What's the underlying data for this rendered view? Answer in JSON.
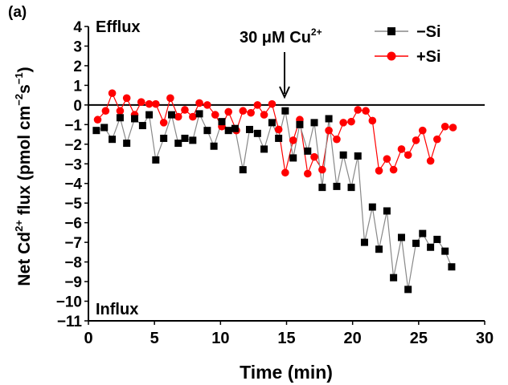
{
  "panel_label": "(a)",
  "annotations": {
    "efflux": "Efflux",
    "influx": "Influx",
    "treatment": "30 μM Cu",
    "treatment_sup": "2+",
    "treatment_time": 14.8
  },
  "chart_data": {
    "type": "line",
    "xlabel": "Time (min)",
    "ylabel_parts": {
      "prefix": "Net Cd",
      "sup1": "2+",
      "mid1": " flux (pmol cm",
      "sup2": "−2",
      "mid2": "s",
      "sup3": "−1",
      "suffix": ")"
    },
    "xlim": [
      0,
      30
    ],
    "ylim": [
      -11,
      4
    ],
    "xticks": [
      0,
      5,
      10,
      15,
      20,
      25,
      30
    ],
    "xtick_labels": [
      "0",
      "5",
      "10",
      "15",
      "20",
      "25",
      "30"
    ],
    "yticks": [
      4,
      3,
      2,
      1,
      0,
      -1,
      -2,
      -3,
      -4,
      -5,
      -6,
      -7,
      -8,
      -9,
      -10,
      -11
    ],
    "ytick_labels": [
      "4",
      "3",
      "2",
      "1",
      "0",
      "−1",
      "−2",
      "−3",
      "−4",
      "−5",
      "−6",
      "−7",
      "−8",
      "−9",
      "−10",
      "−11"
    ],
    "zero_line": 0,
    "legend_position": "top-right",
    "series": [
      {
        "name": "−Si",
        "color": "#000000",
        "line_color": "#888888",
        "marker": "square",
        "points": [
          [
            0.6,
            -1.3
          ],
          [
            1.2,
            -1.15
          ],
          [
            1.8,
            -1.75
          ],
          [
            2.4,
            -0.65
          ],
          [
            2.9,
            -1.95
          ],
          [
            3.5,
            -0.7
          ],
          [
            4.1,
            -1.05
          ],
          [
            4.6,
            -0.5
          ],
          [
            5.1,
            -2.8
          ],
          [
            5.7,
            -1.7
          ],
          [
            6.3,
            -0.5
          ],
          [
            6.8,
            -1.95
          ],
          [
            7.3,
            -1.7
          ],
          [
            7.9,
            -1.8
          ],
          [
            8.4,
            -0.45
          ],
          [
            9.0,
            -1.3
          ],
          [
            9.5,
            -2.1
          ],
          [
            10.1,
            -0.85
          ],
          [
            10.6,
            -1.3
          ],
          [
            11.1,
            -1.2
          ],
          [
            11.7,
            -3.3
          ],
          [
            12.2,
            -1.25
          ],
          [
            12.8,
            -1.45
          ],
          [
            13.3,
            -2.25
          ],
          [
            13.9,
            -0.9
          ],
          [
            14.4,
            -1.7
          ],
          [
            14.9,
            -0.3
          ],
          [
            15.5,
            -2.7
          ],
          [
            16.0,
            -1.0
          ],
          [
            16.6,
            -2.35
          ],
          [
            17.1,
            -0.9
          ],
          [
            17.7,
            -4.2
          ],
          [
            18.2,
            -0.7
          ],
          [
            18.8,
            -4.15
          ],
          [
            19.3,
            -2.55
          ],
          [
            19.9,
            -4.2
          ],
          [
            20.4,
            -2.6
          ],
          [
            20.9,
            -7.0
          ],
          [
            21.5,
            -5.2
          ],
          [
            22.0,
            -7.35
          ],
          [
            22.6,
            -5.4
          ],
          [
            23.1,
            -8.8
          ],
          [
            23.7,
            -6.75
          ],
          [
            24.2,
            -9.4
          ],
          [
            24.8,
            -7.05
          ],
          [
            25.3,
            -6.55
          ],
          [
            25.9,
            -7.25
          ],
          [
            26.4,
            -6.85
          ],
          [
            27.0,
            -7.45
          ],
          [
            27.5,
            -8.25
          ]
        ]
      },
      {
        "name": "+Si",
        "color": "#ff0000",
        "line_color": "#ff0000",
        "marker": "circle",
        "points": [
          [
            0.7,
            -0.75
          ],
          [
            1.3,
            -0.3
          ],
          [
            1.8,
            0.6
          ],
          [
            2.4,
            -0.3
          ],
          [
            2.9,
            0.35
          ],
          [
            3.5,
            -0.5
          ],
          [
            4.0,
            0.15
          ],
          [
            4.6,
            0.05
          ],
          [
            5.1,
            0.05
          ],
          [
            5.7,
            -0.9
          ],
          [
            6.2,
            0.35
          ],
          [
            6.8,
            -0.6
          ],
          [
            7.3,
            -0.25
          ],
          [
            7.9,
            -0.6
          ],
          [
            8.4,
            0.1
          ],
          [
            9.0,
            0.0
          ],
          [
            9.6,
            -0.5
          ],
          [
            10.1,
            -1.1
          ],
          [
            10.6,
            -0.35
          ],
          [
            11.2,
            -1.3
          ],
          [
            11.7,
            -0.3
          ],
          [
            12.3,
            -0.4
          ],
          [
            12.8,
            0.0
          ],
          [
            13.3,
            -0.5
          ],
          [
            13.9,
            0.05
          ],
          [
            14.4,
            -1.25
          ],
          [
            14.9,
            -3.45
          ],
          [
            15.5,
            -1.8
          ],
          [
            16.0,
            -0.75
          ],
          [
            16.6,
            -3.5
          ],
          [
            17.1,
            -2.65
          ],
          [
            17.7,
            -3.3
          ],
          [
            18.2,
            -1.3
          ],
          [
            18.8,
            -1.75
          ],
          [
            19.3,
            -0.9
          ],
          [
            19.9,
            -0.85
          ],
          [
            20.4,
            -0.25
          ],
          [
            21.0,
            -0.3
          ],
          [
            21.5,
            -0.8
          ],
          [
            22.0,
            -3.35
          ],
          [
            22.6,
            -2.75
          ],
          [
            23.1,
            -3.3
          ],
          [
            23.7,
            -2.25
          ],
          [
            24.2,
            -2.55
          ],
          [
            24.8,
            -1.8
          ],
          [
            25.3,
            -1.3
          ],
          [
            25.9,
            -2.85
          ],
          [
            26.4,
            -1.75
          ],
          [
            27.0,
            -1.1
          ],
          [
            27.6,
            -1.15
          ]
        ]
      }
    ]
  }
}
